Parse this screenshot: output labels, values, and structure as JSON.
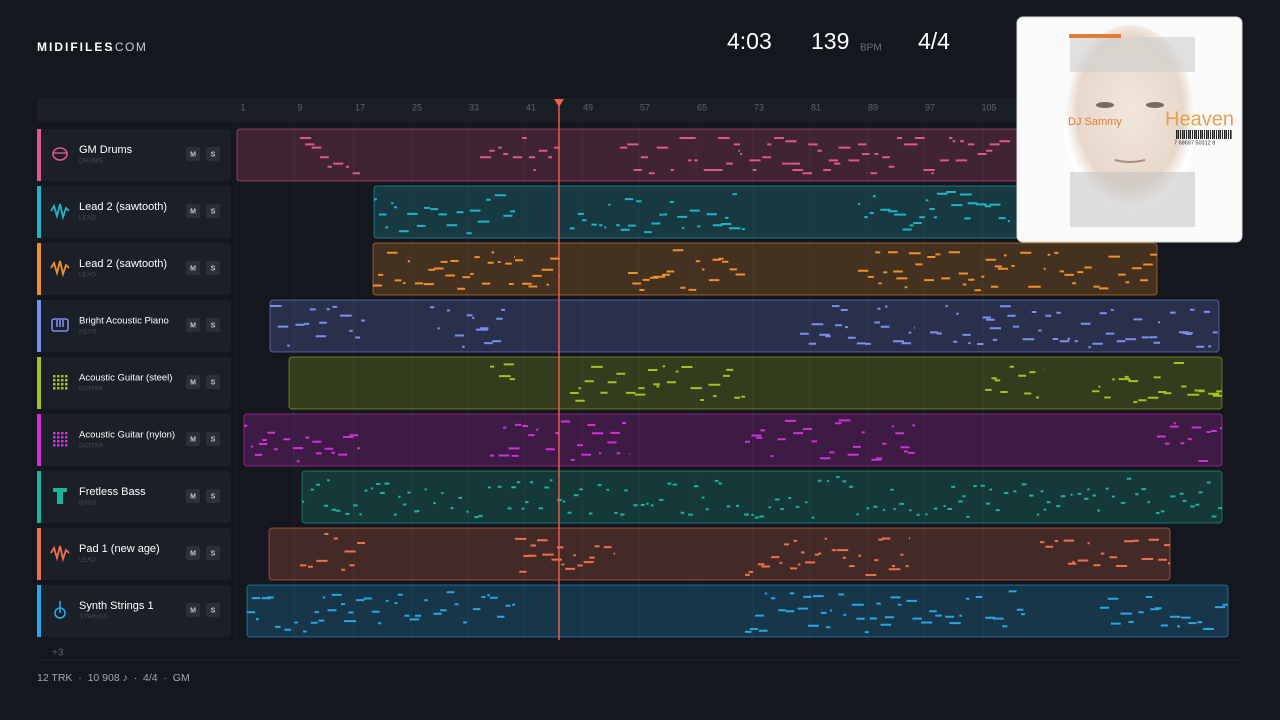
{
  "header": {
    "brand": "MIDIFILES",
    "brand_suffix": ".COM",
    "duration": "4:03",
    "tempo": "139",
    "tempo_unit": "BPM",
    "time_signature": "4/4"
  },
  "ruler": [
    "1",
    "9",
    "17",
    "25",
    "33",
    "41",
    "49",
    "57",
    "65",
    "73",
    "81",
    "89",
    "97",
    "105"
  ],
  "buttons": {
    "mute": "M",
    "solo": "S"
  },
  "tracks": [
    {
      "name": "GM Drums",
      "category": "DRUMS",
      "color": "#e0578a"
    },
    {
      "name": "Lead 2 (sawtooth)",
      "category": "LEAD",
      "color": "#1fb5c9"
    },
    {
      "name": "Lead 2 (sawtooth)",
      "category": "LEAD",
      "color": "#f0902a"
    },
    {
      "name": "Bright Acoustic Piano",
      "category": "KEYS",
      "color": "#7b8ff0"
    },
    {
      "name": "Acoustic Guitar (steel)",
      "category": "GUITAR",
      "color": "#a6c21e"
    },
    {
      "name": "Acoustic Guitar (nylon)",
      "category": "GUITAR",
      "color": "#d22fd6"
    },
    {
      "name": "Fretless Bass",
      "category": "BASS",
      "color": "#1bb59a"
    },
    {
      "name": "Pad 1 (new age)",
      "category": "LEAD",
      "color": "#f0704e"
    },
    {
      "name": "Synth Strings 1",
      "category": "STRINGS",
      "color": "#27a7e6"
    }
  ],
  "more_tracks": "+3",
  "footer": "12 TRK  ·  10 908 ♪  ·  4/4  ·  GM",
  "album": {
    "artist": "DJ Sammy",
    "title": "Heaven",
    "barcode": "7 68697 50312 8"
  }
}
